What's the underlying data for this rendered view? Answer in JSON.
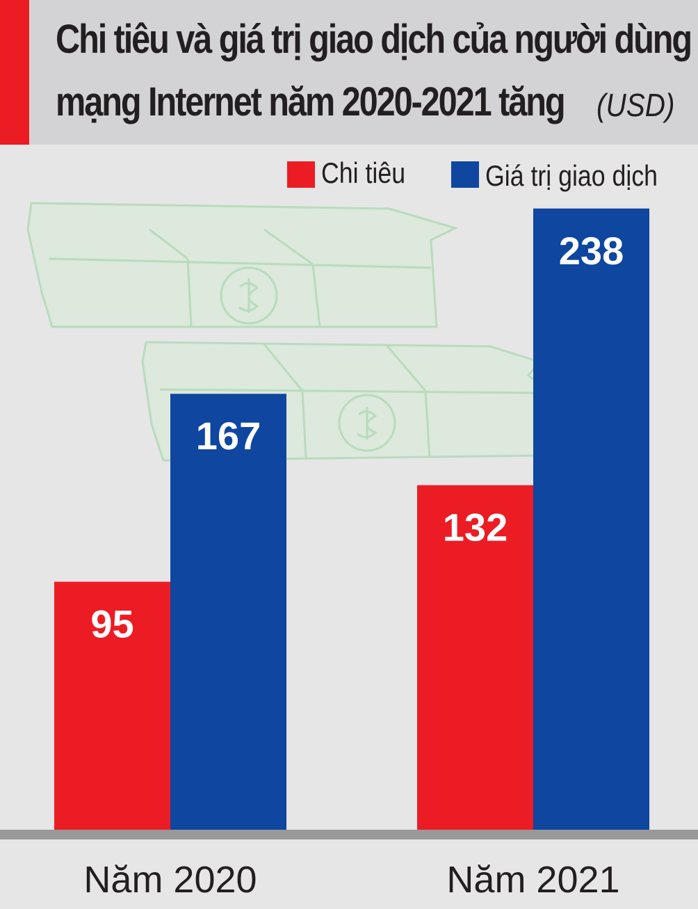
{
  "header": {
    "title_line1": "Chi tiêu và giá trị giao dịch của người dùng",
    "title_line2": "mạng Internet năm 2020-2021 tăng",
    "unit": "(USD)"
  },
  "colors": {
    "chi_tieu": "#ec1c24",
    "gia_tri_giao_dich": "#0e46a0",
    "accent": "#ec1c24",
    "header_bg": "#d3d3d5",
    "background": "#e6e6e7",
    "baseline": "#999999"
  },
  "icons": [
    "money-stack-icon"
  ],
  "chart_data": {
    "type": "bar",
    "categories": [
      "Năm 2020",
      "Năm 2021"
    ],
    "series": [
      {
        "name": "Chi tiêu",
        "values": [
          95,
          132
        ]
      },
      {
        "name": "Giá trị giao dịch",
        "values": [
          167,
          238
        ]
      }
    ],
    "title": "Chi tiêu và giá trị giao dịch của người dùng mạng Internet năm 2020-2021 tăng",
    "unit": "(USD)",
    "legend": "top-right",
    "grid": false,
    "ylim": [
      0,
      250
    ]
  }
}
